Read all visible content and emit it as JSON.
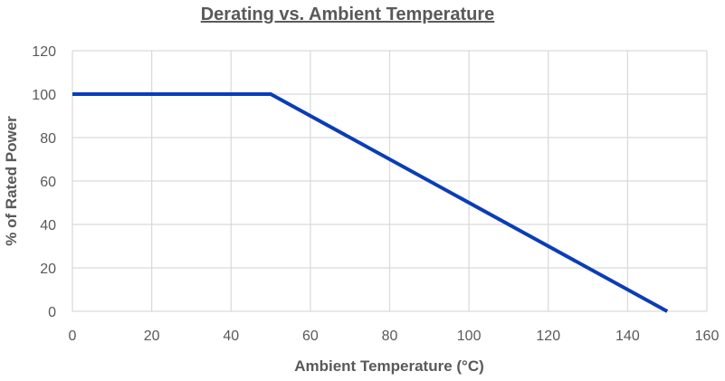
{
  "chart_data": {
    "type": "line",
    "title": "Derating vs. Ambient Temperature",
    "xlabel": "Ambient Temperature (°C)",
    "ylabel": "% of Rated Power",
    "xlim": [
      0,
      160
    ],
    "ylim": [
      0,
      120
    ],
    "x_ticks": [
      0,
      20,
      40,
      60,
      80,
      100,
      120,
      140,
      160
    ],
    "y_ticks": [
      0,
      20,
      40,
      60,
      80,
      100,
      120
    ],
    "grid": true,
    "legend": "none",
    "series": [
      {
        "color": "#0a3db8",
        "x": [
          0,
          50,
          150
        ],
        "y": [
          100,
          100,
          0
        ]
      }
    ]
  }
}
